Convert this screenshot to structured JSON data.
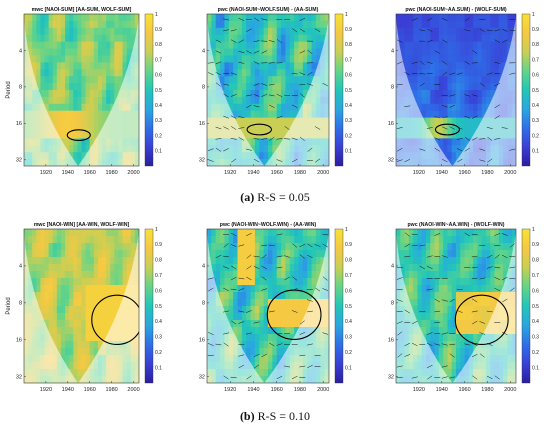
{
  "figure": {
    "captions": [
      {
        "tag": "(a)",
        "text": "R-S = 0.05"
      },
      {
        "tag": "(b)",
        "text": "R-S = 0.10"
      }
    ]
  },
  "colormap": {
    "stops": [
      "#2a1da0",
      "#3a3fd6",
      "#2f6fe8",
      "#2aa7e0",
      "#22c6b8",
      "#64d488",
      "#c8cf54",
      "#f5c843",
      "#f7e236"
    ],
    "gradient_note": "parula"
  },
  "chart_data": [
    {
      "type": "heatmap",
      "panel": "a",
      "title": "mwc [NAOI-SUM] [AA-SUM, WOLF-SUM]",
      "xlabel": "",
      "ylabel": "Period",
      "x_ticks": [
        1920,
        1940,
        1960,
        1980,
        2000
      ],
      "y_ticks": [
        4,
        8,
        16,
        32
      ],
      "y_scale": "log2",
      "colorbar_ticks": [
        0.1,
        0.2,
        0.3,
        0.4,
        0.5,
        0.6,
        0.7,
        0.8,
        0.9,
        1
      ],
      "style": "mwc-warm",
      "hot_zone": {
        "center_year": 1950,
        "center_period": 20,
        "value": 0.95
      }
    },
    {
      "type": "heatmap",
      "panel": "a",
      "title": "pwc (NAOI-SUM~WOLF.SUM) - (AA-SUM)",
      "xlabel": "",
      "ylabel": "",
      "x_ticks": [
        1920,
        1940,
        1960,
        1980,
        2000
      ],
      "y_ticks": [
        4,
        8,
        16,
        32
      ],
      "y_scale": "log2",
      "colorbar_ticks": [
        0.1,
        0.2,
        0.3,
        0.4,
        0.5,
        0.6,
        0.7,
        0.8,
        0.9,
        1
      ],
      "style": "pwc-banded",
      "hot_zone": {
        "center_year": 1945,
        "center_period": 18,
        "value": 0.9
      }
    },
    {
      "type": "heatmap",
      "panel": "a",
      "title": "pwc (NAOI-SUM~AA.SUM) - (WOLF-SUM)",
      "xlabel": "",
      "ylabel": "",
      "x_ticks": [
        1920,
        1940,
        1960,
        1980,
        2000
      ],
      "y_ticks": [
        4,
        8,
        16,
        32
      ],
      "y_scale": "log2",
      "colorbar_ticks": [
        0.1,
        0.2,
        0.3,
        0.4,
        0.5,
        0.6,
        0.7,
        0.8,
        0.9,
        1
      ],
      "style": "pwc-dark",
      "hot_zone": {
        "center_year": 1945,
        "center_period": 18,
        "value": 0.85
      }
    },
    {
      "type": "heatmap",
      "panel": "b",
      "title": "mwc [NAOI-WIN] [AA-WIN, WOLF-WIN]",
      "xlabel": "",
      "ylabel": "Period",
      "x_ticks": [
        1920,
        1940,
        1960,
        1980,
        2000
      ],
      "y_ticks": [
        4,
        8,
        16,
        32
      ],
      "y_scale": "log2",
      "colorbar_ticks": [
        0.1,
        0.2,
        0.3,
        0.4,
        0.5,
        0.6,
        0.7,
        0.8,
        0.9,
        1
      ],
      "style": "mwc-win",
      "hot_zone": {
        "center_year": 1985,
        "center_period": 11,
        "value": 0.95
      }
    },
    {
      "type": "heatmap",
      "panel": "b",
      "title": "pwc (NAOI-WIN~WOLF.WIN) - (AA-WIN)",
      "xlabel": "",
      "ylabel": "",
      "x_ticks": [
        1920,
        1940,
        1960,
        1980,
        2000
      ],
      "y_ticks": [
        4,
        8,
        16,
        32
      ],
      "y_scale": "log2",
      "colorbar_ticks": [
        0.1,
        0.2,
        0.3,
        0.4,
        0.5,
        0.6,
        0.7,
        0.8,
        0.9,
        1
      ],
      "style": "pwc-win-aa",
      "hot_zone": {
        "center_year": 1975,
        "center_period": 10,
        "value": 0.95
      }
    },
    {
      "type": "heatmap",
      "panel": "b",
      "title": "pwc (NAOI-WIN~AA.WIN) - (WOLF-WIN)",
      "xlabel": "",
      "ylabel": "",
      "x_ticks": [
        1920,
        1940,
        1960,
        1980,
        2000
      ],
      "y_ticks": [
        4,
        8,
        16,
        32
      ],
      "y_scale": "log2",
      "colorbar_ticks": [
        0.1,
        0.2,
        0.3,
        0.4,
        0.5,
        0.6,
        0.7,
        0.8,
        0.9,
        1
      ],
      "style": "pwc-win-wolf",
      "hot_zone": {
        "center_year": 1975,
        "center_period": 11,
        "value": 0.95
      }
    }
  ]
}
